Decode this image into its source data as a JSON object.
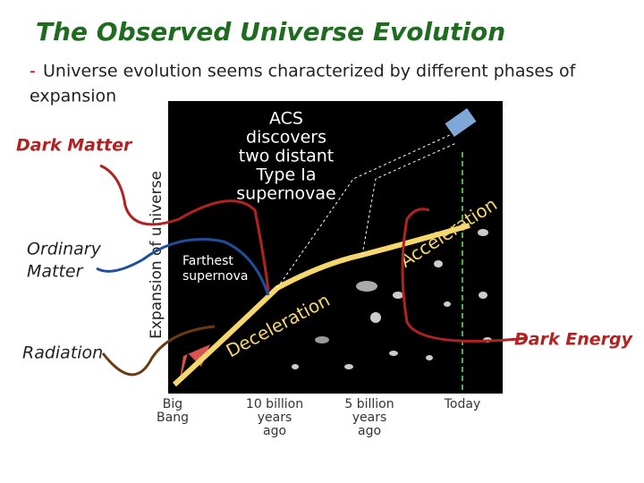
{
  "title": "The Observed Universe Evolution",
  "bullet": {
    "marker": "-",
    "text_lines": [
      "Universe evolution seems characterized by different phases of",
      "expansion"
    ]
  },
  "labels": {
    "dark_matter": "Dark Matter",
    "ordinary_matter": [
      "Ordinary",
      "Matter"
    ],
    "radiation": "Radiation",
    "dark_energy": "Dark Energy"
  },
  "figure": {
    "y_axis_label": "Expansion of universe",
    "callout": [
      "ACS",
      "discovers",
      "two distant",
      "Type Ia",
      "supernovae"
    ],
    "farthest": [
      "Farthest",
      "supernova"
    ],
    "acceleration": "Acceleration",
    "deceleration": "Deceleration",
    "time_labels": [
      [
        "Big",
        "Bang"
      ],
      [
        "10 billion",
        "years",
        "ago"
      ],
      [
        "5 billion",
        "years",
        "ago"
      ],
      [
        "Today"
      ]
    ]
  }
}
